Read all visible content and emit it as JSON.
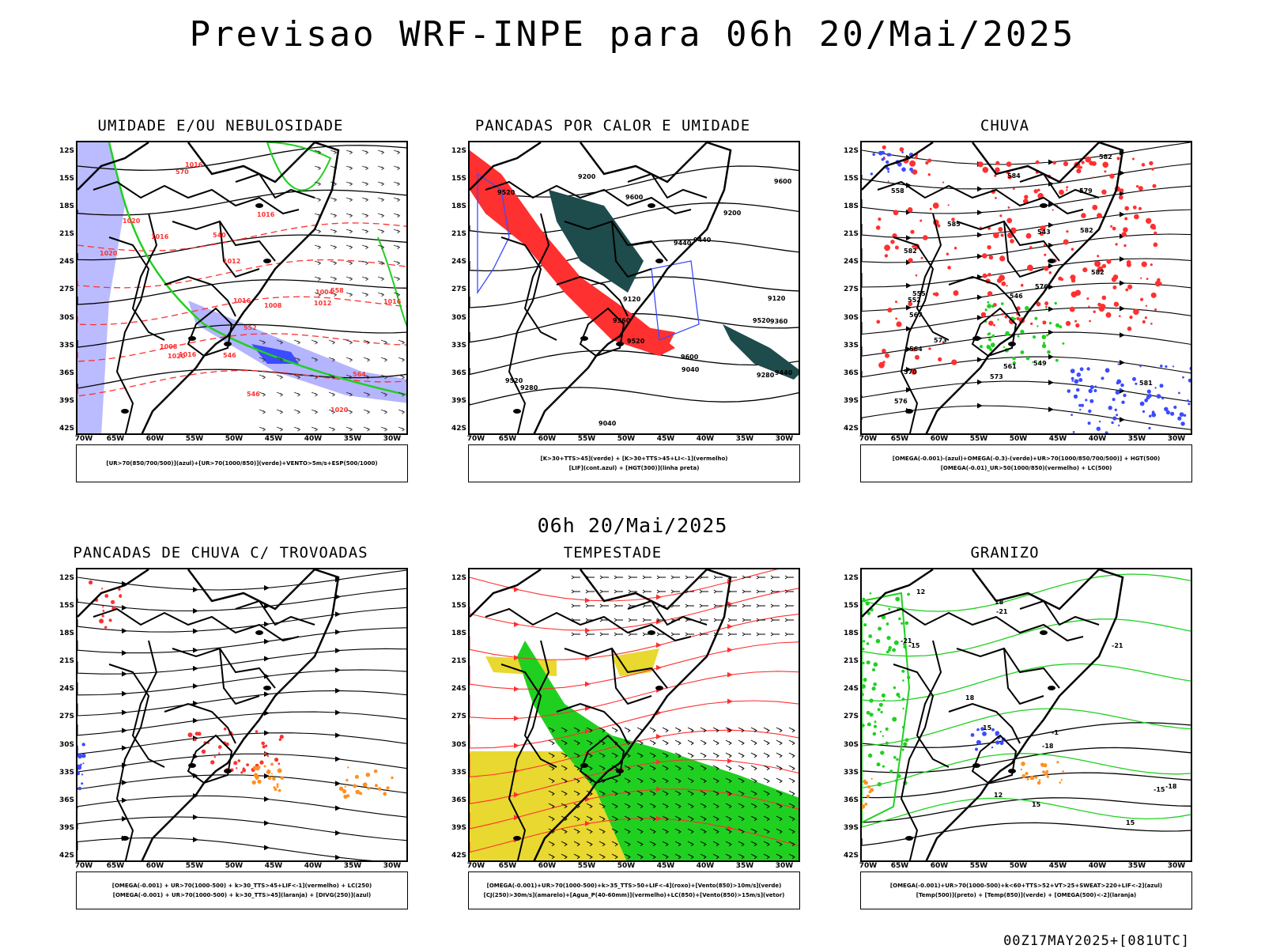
{
  "title": "Previsao WRF-INPE  para 06h 20/Mai/2025",
  "subtitle": "06h 20/Mai/2025",
  "footer_stamp": "00Z17MAY2025+[081UTC]",
  "lat_ticks": [
    "12S",
    "15S",
    "18S",
    "21S",
    "24S",
    "27S",
    "30S",
    "33S",
    "36S",
    "39S",
    "42S"
  ],
  "lon_ticks": [
    "70W",
    "65W",
    "60W",
    "55W",
    "50W",
    "45W",
    "40W",
    "35W",
    "30W"
  ],
  "colors": {
    "blue": "#3b4bff",
    "green": "#20d020",
    "red": "#ff3030",
    "dark_teal": "#1e4b4b",
    "yellow": "#e8d830",
    "orange": "#ff9020",
    "lavender": "#b4b4ff"
  },
  "panels": [
    {
      "title": "UMIDADE E/OU NEBULOSIDADE",
      "legend": [
        "[UR>70(850/700/500)](azul)+[UR>70(1000/850)](verde)+VENTO>5m/s+ESP(500/1000)"
      ],
      "contour_labels": [
        "1016",
        "1020",
        "1012",
        "570",
        "1016",
        "1016",
        "1020",
        "1008",
        "564",
        "1012",
        "1016",
        "1004",
        "1020",
        "558",
        "552",
        "546",
        "540",
        "1016",
        "1008",
        "546",
        "1016",
        "1020"
      ]
    },
    {
      "title": "PANCADAS POR CALOR E UMIDADE",
      "legend": [
        "[K>30+TTS>45](verde) + [K>30+TTS>45+LI<-1](vermelho)",
        "[LIF](cont.azul) + [HGT(300)](linha preta)"
      ],
      "contour_labels": [
        "9600",
        "9600",
        "9520",
        "9600",
        "9520",
        "9440",
        "9520",
        "9520",
        "9440",
        "9360",
        "9440",
        "9360",
        "9280",
        "9280",
        "9200",
        "9200",
        "9120",
        "9120",
        "9040",
        "9040"
      ]
    },
    {
      "title": "CHUVA",
      "legend": [
        "[OMEGA(-0.001)-(azul)+OMEGA(-0.3)-(verde)+UR>70(1000/850/700/500)] + HGT(500)",
        "[OMEGA(-0.01)_UR>50(1000/850)(vermelho) + LC(500)"
      ],
      "contour_labels": [
        "582",
        "585",
        "582",
        "579",
        "576",
        "582",
        "576",
        "573",
        "570",
        "573",
        "567",
        "564",
        "561",
        "558",
        "555",
        "552",
        "549",
        "546",
        "543",
        "581",
        "584",
        "582"
      ]
    },
    {
      "title": "PANCADAS DE CHUVA C/ TROVOADAS",
      "legend": [
        "[OMEGA(-0.001) + UR>70(1000-500) + k>30_TTS>45+LIF<-1](vermelho) + LC(250)",
        "[OMEGA(-0.001) + UR>70(1000-500) + k>30_TTS>45](laranja) + [DIVG(250)](azul)"
      ],
      "contour_labels": []
    },
    {
      "title": "TEMPESTADE",
      "legend": [
        "[OMEGA(-0.001)+UR>70(1000-500)+k>35_TTS>50+LIF<-4](roxo)+[Vento(850)>10m/s](verde)",
        "[CJ(250)>30m/s](amarelo)+[Agua_P(40-60mm)](vermelho)+LC(850)+[Vento(850)>15m/s](vetor)"
      ],
      "contour_labels": []
    },
    {
      "title": "GRANIZO",
      "legend": [
        "[OMEGA(-0.001)+UR>70(1000-500)+k<60+TTS>52+VT>25+SWEAT>220+LIF<-2](azul)",
        "[Temp(500)](preto) + [Temp(850)](verde) + [OMEGA(500)<-2](laranja)"
      ],
      "contour_labels": [
        "-1",
        "-15",
        "-18",
        "-21",
        "-21",
        "-18",
        "-15",
        "-21",
        "12",
        "15",
        "18",
        "12",
        "15",
        "18",
        "15"
      ]
    }
  ]
}
